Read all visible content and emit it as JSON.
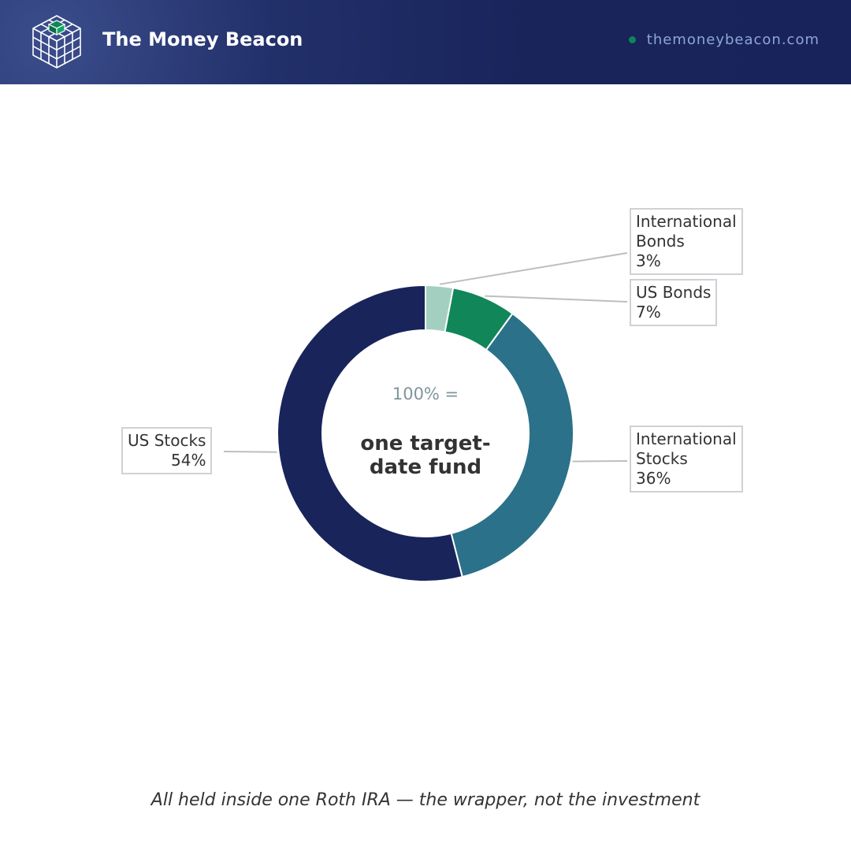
{
  "header": {
    "brand_name": "The Money Beacon",
    "site_url": "themoneybeacon.com",
    "logo_icon": "cube-grid-icon",
    "colors": {
      "background": "#18245a",
      "dot": "#0f8658",
      "url_text": "#8fa5d8"
    }
  },
  "center": {
    "top_text": "100% =",
    "main_line1": "one target-",
    "main_line2": "date fund"
  },
  "caption": "All held inside one Roth IRA — the wrapper, not the investment",
  "chart_data": {
    "type": "pie",
    "donut": true,
    "title": "",
    "start_angle_deg": 0,
    "direction": "clockwise",
    "slices": [
      {
        "name": "International Bonds",
        "label_lines": [
          "International",
          "Bonds",
          "3%"
        ],
        "value": 3,
        "color": "#a3cfc0",
        "label_side": "right"
      },
      {
        "name": "US Bonds",
        "label_lines": [
          "US Bonds",
          "7%"
        ],
        "value": 7,
        "color": "#108659",
        "label_side": "right"
      },
      {
        "name": "International Stocks",
        "label_lines": [
          "International",
          "Stocks",
          "36%"
        ],
        "value": 36,
        "color": "#2b718a",
        "label_side": "right"
      },
      {
        "name": "US Stocks",
        "label_lines": [
          "US Stocks",
          "54%"
        ],
        "value": 54,
        "color": "#18245a",
        "label_side": "left"
      }
    ]
  }
}
